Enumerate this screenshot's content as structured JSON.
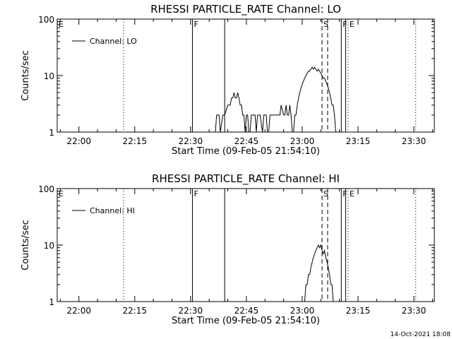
{
  "chart_data": [
    {
      "type": "line",
      "title": "RHESSI  PARTICLE_RATE  Channel:  LO",
      "xlabel": "Start Time (09-Feb-05 21:54:10)",
      "ylabel": "Counts/sec",
      "yscale": "log",
      "ylim": [
        1,
        100
      ],
      "xlim": [
        "21:54:10",
        "23:35:30"
      ],
      "y_ticks": [
        {
          "value": 1,
          "label": "1"
        },
        {
          "value": 10,
          "label": "10"
        },
        {
          "value": 100,
          "label": "100"
        }
      ],
      "x_ticks": [
        "22:00",
        "22:15",
        "22:30",
        "22:45",
        "23:00",
        "23:15",
        "23:30"
      ],
      "legend": {
        "placement": "top-left",
        "entries": [
          {
            "label": "Channel: LO"
          }
        ]
      },
      "markers": [
        {
          "time": "21:54:10",
          "style": "solid",
          "label": "E"
        },
        {
          "time": "22:12:00",
          "style": "dotted",
          "label": ""
        },
        {
          "time": "22:30:30",
          "style": "solid",
          "label": "F"
        },
        {
          "time": "22:39:10",
          "style": "solid",
          "label": ""
        },
        {
          "time": "23:05:20",
          "style": "dashed",
          "label": "S"
        },
        {
          "time": "23:06:50",
          "style": "dashed",
          "label": ""
        },
        {
          "time": "23:10:30",
          "style": "solid",
          "label": "F"
        },
        {
          "time": "23:11:40",
          "style": "solid",
          "label": ""
        },
        {
          "time": "23:12:20",
          "style": "dotted",
          "label": "E"
        },
        {
          "time": "23:30:30",
          "style": "dotted",
          "label": ""
        }
      ],
      "series": [
        {
          "name": "Channel: LO",
          "x": [
            "22:36:40",
            "22:37:00",
            "22:37:40",
            "22:38:00",
            "22:38:40",
            "22:39:10",
            "22:40:00",
            "22:40:40",
            "22:41:00",
            "22:41:20",
            "22:41:40",
            "22:42:00",
            "22:42:20",
            "22:42:40",
            "22:43:00",
            "22:43:20",
            "22:43:40",
            "22:44:00",
            "22:44:20",
            "22:44:40",
            "22:45:00",
            "22:45:20",
            "22:45:40",
            "22:46:00",
            "22:46:20",
            "22:47:20",
            "22:47:40",
            "22:48:00",
            "22:48:40",
            "22:49:20",
            "22:49:40",
            "22:50:20",
            "22:50:40",
            "22:51:00",
            "22:51:20",
            "22:51:40",
            "22:52:20",
            "22:52:40",
            "22:53:00",
            "22:53:20",
            "22:53:40",
            "22:54:00",
            "22:54:20",
            "22:55:00",
            "22:55:20",
            "22:55:40",
            "22:56:00",
            "22:56:20",
            "22:56:40",
            "22:57:00",
            "22:57:20",
            "22:57:40",
            "22:58:00",
            "22:58:20",
            "22:58:40",
            "22:59:00",
            "22:59:20",
            "22:59:40",
            "23:00:00",
            "23:00:20",
            "23:00:40",
            "23:01:00",
            "23:01:20",
            "23:01:40",
            "23:02:00",
            "23:02:20",
            "23:02:40",
            "23:03:00",
            "23:03:20",
            "23:03:40",
            "23:04:00",
            "23:04:20",
            "23:04:40",
            "23:05:00",
            "23:05:20",
            "23:05:40",
            "23:06:00",
            "23:06:20",
            "23:06:40",
            "23:07:00",
            "23:07:20",
            "23:07:40",
            "23:08:00",
            "23:08:20",
            "23:08:40",
            "23:09:00",
            "23:09:20"
          ],
          "y": [
            1,
            2,
            2,
            1,
            2,
            2,
            3,
            3,
            4,
            4,
            5,
            4,
            4,
            5,
            4,
            3,
            3,
            2,
            2,
            1,
            2,
            2,
            1,
            1,
            2,
            2,
            1,
            2,
            2,
            1,
            2,
            2,
            1,
            1,
            2,
            2,
            2,
            2,
            2,
            2,
            2,
            2,
            3,
            2,
            2,
            3,
            2,
            2,
            3,
            2,
            1,
            1,
            2,
            2,
            3,
            4,
            5,
            6,
            7,
            8,
            9,
            10,
            11,
            12,
            12,
            13,
            14,
            13,
            14,
            13,
            12,
            13,
            12,
            11,
            10,
            9,
            9,
            8,
            7,
            6,
            5,
            4,
            3,
            3,
            2,
            1,
            1
          ]
        }
      ]
    },
    {
      "type": "line",
      "title": "RHESSI  PARTICLE_RATE  Channel:  HI",
      "xlabel": "Start Time (09-Feb-05 21:54:10)",
      "ylabel": "Counts/sec",
      "yscale": "log",
      "ylim": [
        1,
        100
      ],
      "xlim": [
        "21:54:10",
        "23:35:30"
      ],
      "y_ticks": [
        {
          "value": 1,
          "label": "1"
        },
        {
          "value": 10,
          "label": "10"
        },
        {
          "value": 100,
          "label": "100"
        }
      ],
      "x_ticks": [
        "22:00",
        "22:15",
        "22:30",
        "22:45",
        "23:00",
        "23:15",
        "23:30"
      ],
      "legend": {
        "placement": "top-left",
        "entries": [
          {
            "label": "Channel: HI"
          }
        ]
      },
      "markers": [
        {
          "time": "21:54:10",
          "style": "solid",
          "label": "E"
        },
        {
          "time": "22:12:00",
          "style": "dotted",
          "label": ""
        },
        {
          "time": "22:30:30",
          "style": "solid",
          "label": "F"
        },
        {
          "time": "22:39:10",
          "style": "solid",
          "label": ""
        },
        {
          "time": "23:05:20",
          "style": "dashed",
          "label": "S"
        },
        {
          "time": "23:06:50",
          "style": "dashed",
          "label": ""
        },
        {
          "time": "23:10:30",
          "style": "solid",
          "label": "F"
        },
        {
          "time": "23:11:40",
          "style": "solid",
          "label": ""
        },
        {
          "time": "23:12:20",
          "style": "dotted",
          "label": "E"
        },
        {
          "time": "23:30:30",
          "style": "dotted",
          "label": ""
        }
      ],
      "series": [
        {
          "name": "Channel: HI",
          "x": [
            "23:00:40",
            "23:01:00",
            "23:01:20",
            "23:01:40",
            "23:02:00",
            "23:02:20",
            "23:02:40",
            "23:03:00",
            "23:03:20",
            "23:03:40",
            "23:04:00",
            "23:04:20",
            "23:04:40",
            "23:05:00",
            "23:05:20",
            "23:05:40",
            "23:06:00",
            "23:06:20",
            "23:06:40",
            "23:07:00",
            "23:07:20",
            "23:07:40",
            "23:08:00",
            "23:08:20"
          ],
          "y": [
            1,
            2,
            2,
            3,
            3,
            4,
            5,
            6,
            7,
            8,
            9,
            10,
            9,
            10,
            8,
            7,
            8,
            6,
            5,
            4,
            3,
            2,
            2,
            1
          ]
        }
      ]
    }
  ],
  "footer": {
    "date_stamp": "14-Oct-2021 18:08"
  }
}
